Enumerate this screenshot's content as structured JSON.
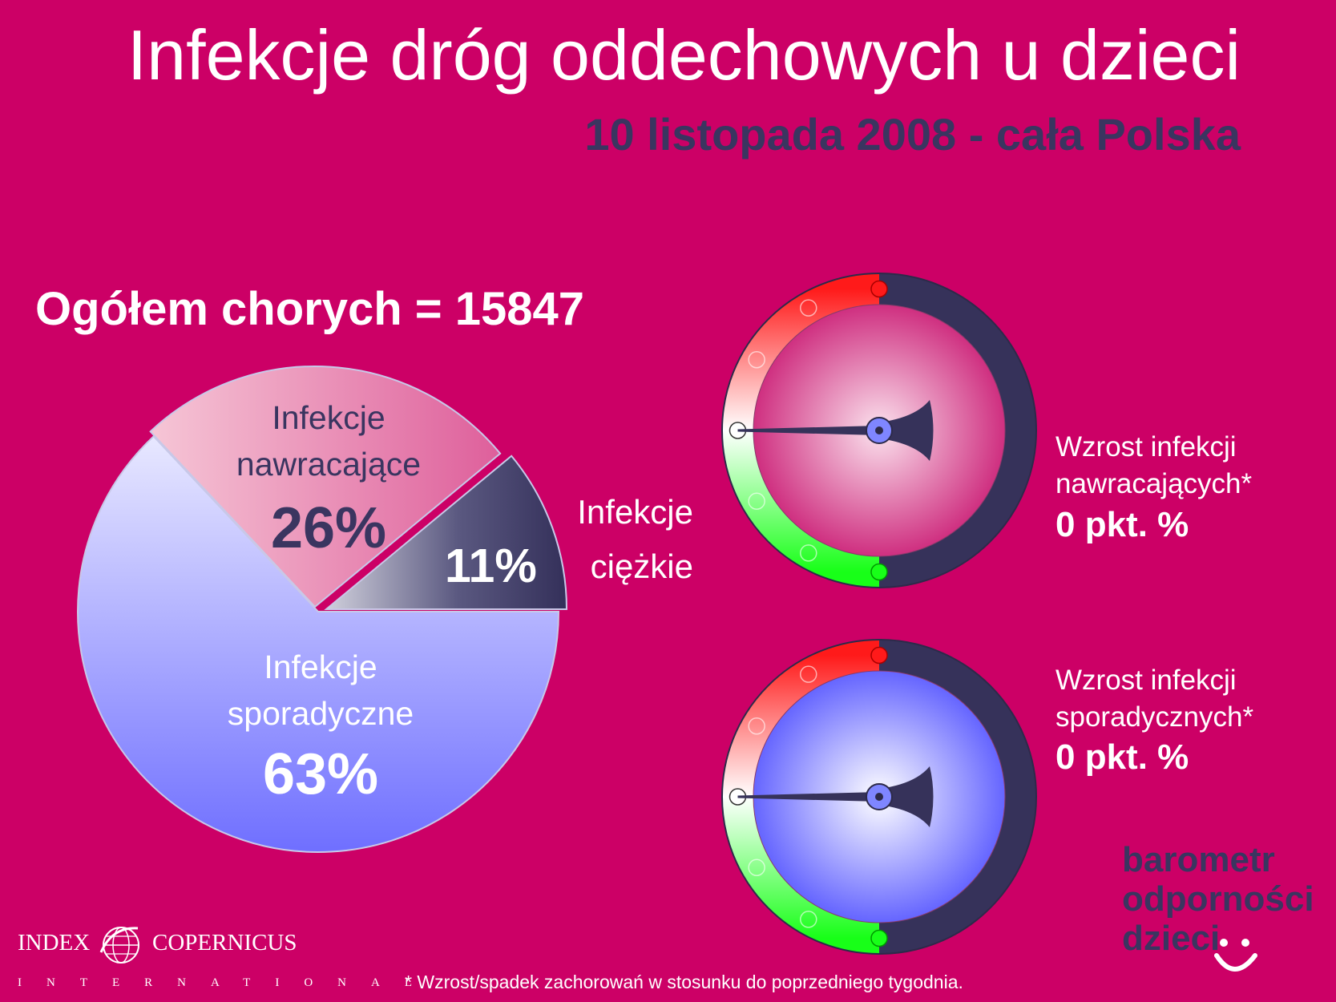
{
  "header": {
    "title": "Infekcje dróg oddechowych u dzieci",
    "subtitle": "10 listopada 2008 - cała Polska"
  },
  "total_label": "Ogółem chorych = 15847",
  "chart_data": [
    {
      "type": "pie",
      "slices": [
        {
          "label_lines": [
            "Infekcje",
            "nawracające"
          ],
          "value": 26,
          "value_label": "26%",
          "color": "#e0609a"
        },
        {
          "label_lines": [
            "Infekcje",
            "ciężkie"
          ],
          "value": 11,
          "value_label": "11%",
          "color": "#3a3560"
        },
        {
          "label_lines": [
            "Infekcje",
            "sporadyczne"
          ],
          "value": 63,
          "value_label": "63%",
          "color": "#7a7aff"
        }
      ]
    },
    {
      "type": "gauge",
      "label_lines": [
        "Wzrost infekcji",
        "nawracających*"
      ],
      "value_text": "0 pkt. %",
      "value": 0,
      "face_color": "#e0609a"
    },
    {
      "type": "gauge",
      "label_lines": [
        "Wzrost infekcji",
        "sporadycznych*"
      ],
      "value_text": "0 pkt. %",
      "value": 0,
      "face_color": "#6a6aff"
    }
  ],
  "brand": {
    "lines": [
      "barometr",
      "odporności",
      "dzieci"
    ]
  },
  "logo": {
    "left": "INDEX",
    "right": "COPERNICUS",
    "bottom": "INTERNATIONAL"
  },
  "footnote": "* Wzrost/spadek zachorowań w stosunku do poprzedniego tygodnia."
}
